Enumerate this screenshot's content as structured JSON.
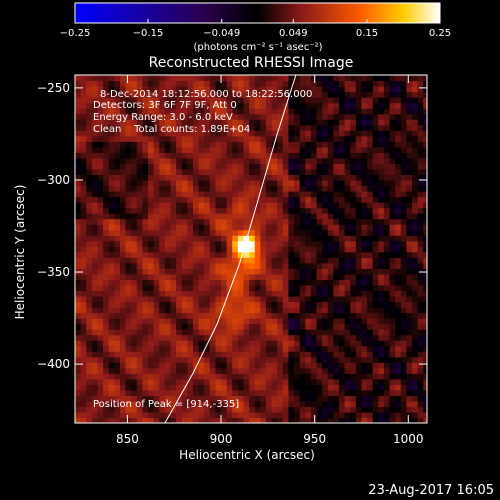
{
  "chart_data": {
    "type": "heatmap",
    "title": "Reconstructed RHESSI Image",
    "xlabel": "Heliocentric X (arcsec)",
    "ylabel": "Heliocentric Y (arcsec)",
    "xlim": [
      822,
      1010
    ],
    "ylim": [
      -432,
      -243
    ],
    "x_ticks": [
      850,
      900,
      950,
      1000
    ],
    "x_tick_labels": [
      "850",
      "900",
      "950",
      "1000"
    ],
    "y_ticks": [
      -250,
      -300,
      -350,
      -400
    ],
    "y_tick_labels": [
      "−250",
      "−300",
      "−350",
      "−400"
    ],
    "colorbar": {
      "range": [
        -0.25,
        0.25
      ],
      "ticks": [
        -0.25,
        -0.15,
        -0.049,
        0.049,
        0.15,
        0.25
      ],
      "tick_labels": [
        "−0.25",
        "−0.15",
        "−0.049",
        "0.049",
        "0.15",
        "0.25"
      ],
      "unit_label": "(photons cm⁻² s⁻¹ asec⁻²)"
    },
    "annotations": {
      "time_range": "8-Dec-2014 18:12:56.000 to 18:22:56.000",
      "detectors": "Detectors: 3F 6F 7F 9F, Att 0",
      "energy": "Energy Range: 3.0 - 6.0 keV",
      "clean": "Clean    Total counts: 1.89E+04",
      "peak": "Position of Peak = [914,-335]"
    },
    "peak": {
      "x": 914,
      "y": -335,
      "value": 0.25
    },
    "sources": [
      {
        "x": 914,
        "y": -335,
        "sigma": 4.5,
        "amp": 0.24
      },
      {
        "x": 910,
        "y": -348,
        "sigma": 6,
        "amp": 0.1
      },
      {
        "x": 906,
        "y": -372,
        "sigma": 7,
        "amp": 0.07
      },
      {
        "x": 910,
        "y": -320,
        "sigma": 6,
        "amp": 0.05
      }
    ],
    "limb_curve": [
      [
        870,
        -432
      ],
      [
        885,
        -405
      ],
      [
        898,
        -378
      ],
      [
        910,
        -345
      ],
      [
        920,
        -310
      ],
      [
        930,
        -275
      ],
      [
        940,
        -243
      ]
    ],
    "footer_date": "23-Aug-2017 16:05"
  }
}
